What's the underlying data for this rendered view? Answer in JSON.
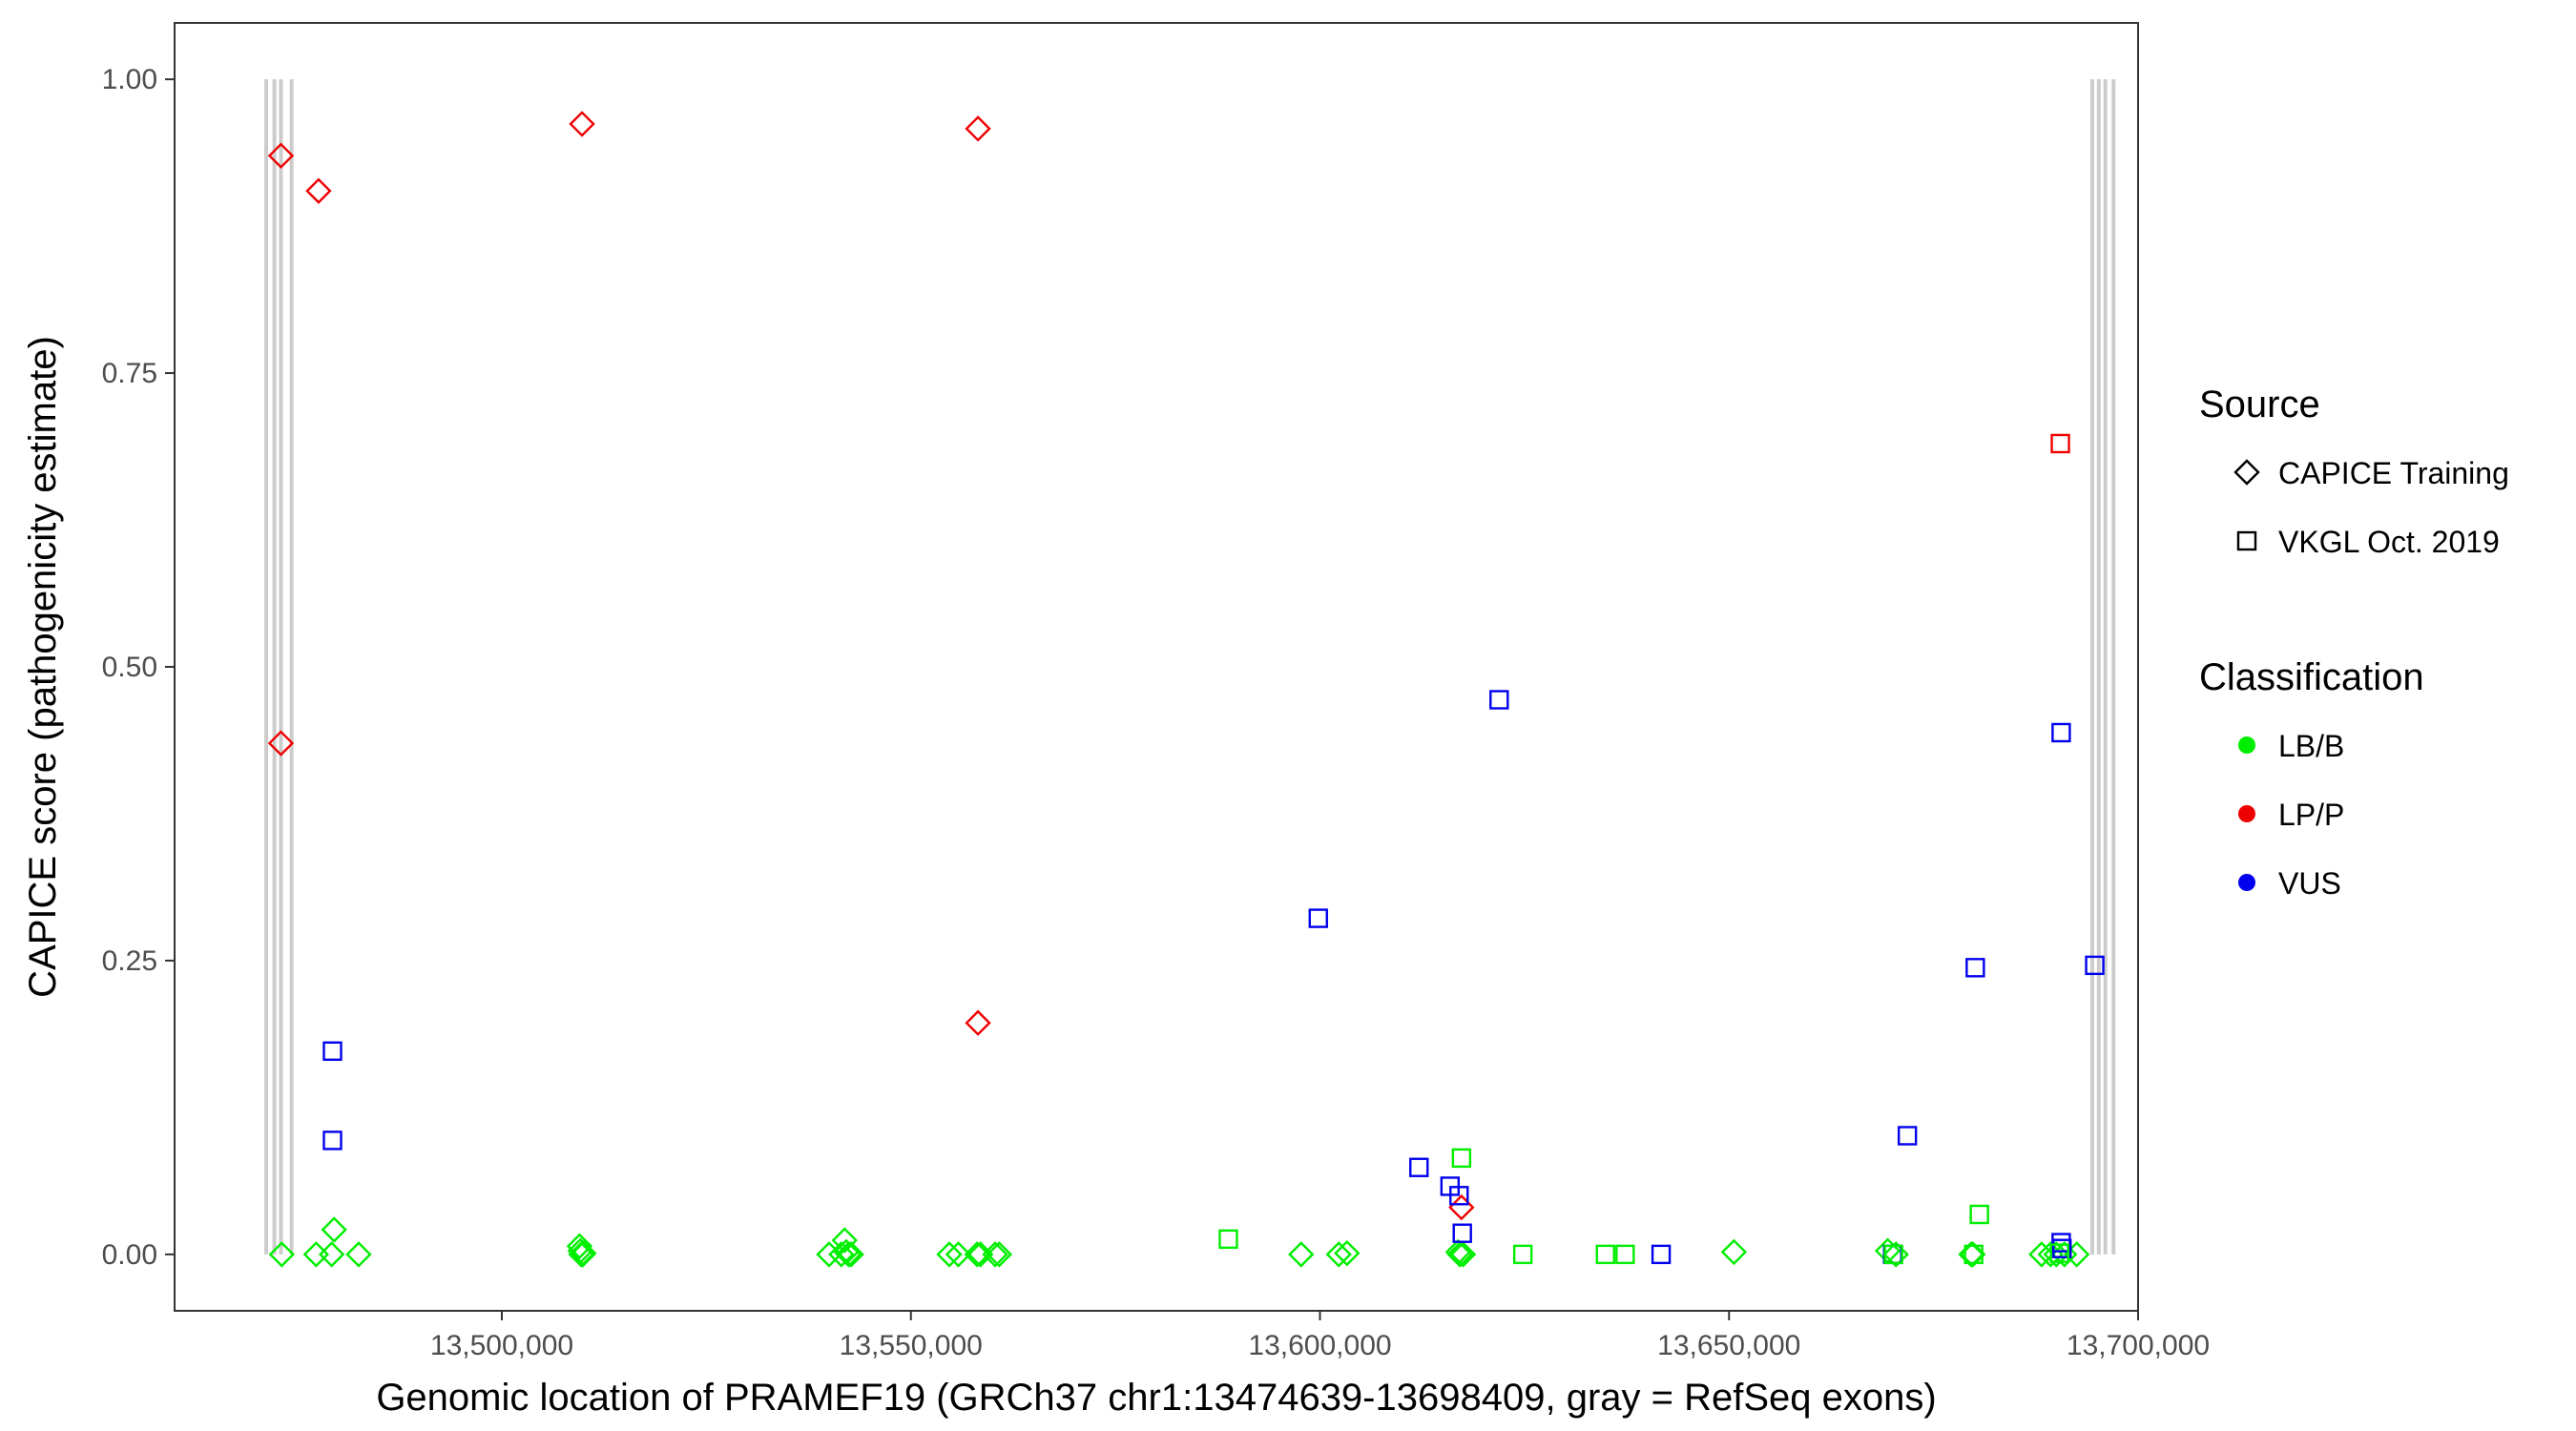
{
  "chart_data": {
    "type": "scatter",
    "title": "",
    "xlabel": "Genomic location of PRAMEF19 (GRCh37 chr1:13474639-13698409, gray = RefSeq exons)",
    "ylabel": "CAPICE score (pathogenicity estimate)",
    "xlim": [
      13460000,
      13700000
    ],
    "ylim": [
      -0.048,
      1.048
    ],
    "x_ticks": [
      13500000,
      13550000,
      13600000,
      13650000,
      13700000
    ],
    "x_tick_labels": [
      "13,500,000",
      "13,550,000",
      "13,600,000",
      "13,650,000",
      "13,700,000"
    ],
    "y_ticks": [
      0,
      0.25,
      0.5,
      0.75,
      1.0
    ],
    "y_tick_labels": [
      "0.00",
      "0.25",
      "0.50",
      "0.75",
      "1.00"
    ],
    "grid": false,
    "legend_position": "right",
    "colors": {
      "LB/B": "#00ee00",
      "LP/P": "#ee0000",
      "VUS": "#0000ee",
      "exon": "#cccccc"
    },
    "exons": [
      13471200,
      13472200,
      13473000,
      13474300,
      13694400,
      13695200,
      13696000,
      13697000
    ],
    "legends": [
      {
        "title": "Source",
        "items": [
          {
            "label": "CAPICE Training",
            "shape": "diamond"
          },
          {
            "label": "VKGL Oct. 2019",
            "shape": "square"
          }
        ]
      },
      {
        "title": "Classification",
        "items": [
          {
            "label": "LB/B",
            "color_key": "LB/B"
          },
          {
            "label": "LP/P",
            "color_key": "LP/P"
          },
          {
            "label": "VUS",
            "color_key": "VUS"
          }
        ]
      }
    ],
    "series": [
      {
        "source": "CAPICE Training",
        "classification": "LP/P",
        "shape": "diamond",
        "points": [
          [
            13473000,
            0.935
          ],
          [
            13477600,
            0.905
          ],
          [
            13473000,
            0.435
          ],
          [
            13509800,
            0.962
          ],
          [
            13558200,
            0.958
          ],
          [
            13558200,
            0.197
          ],
          [
            13617300,
            0.04
          ]
        ]
      },
      {
        "source": "CAPICE Training",
        "classification": "LB/B",
        "shape": "diamond",
        "points": [
          [
            13473100,
            0.0
          ],
          [
            13477300,
            0.0
          ],
          [
            13479200,
            0.0
          ],
          [
            13479500,
            0.021
          ],
          [
            13482500,
            0.0
          ],
          [
            13509500,
            0.007
          ],
          [
            13509600,
            0.003
          ],
          [
            13509700,
            0.0
          ],
          [
            13509900,
            0.0
          ],
          [
            13510000,
            0.001
          ],
          [
            13540000,
            0.0
          ],
          [
            13541500,
            0.0
          ],
          [
            13541900,
            0.012
          ],
          [
            13542100,
            0.002
          ],
          [
            13542400,
            0.0
          ],
          [
            13542700,
            0.0
          ],
          [
            13554700,
            0.0
          ],
          [
            13555800,
            0.0
          ],
          [
            13558100,
            0.0
          ],
          [
            13558500,
            0.0
          ],
          [
            13560300,
            0.0
          ],
          [
            13560800,
            0.0
          ],
          [
            13597700,
            0.0
          ],
          [
            13602300,
            0.0
          ],
          [
            13603300,
            0.001
          ],
          [
            13616900,
            0.002
          ],
          [
            13617100,
            0.0
          ],
          [
            13617500,
            0.0
          ],
          [
            13650600,
            0.002
          ],
          [
            13669400,
            0.003
          ],
          [
            13670400,
            0.0
          ],
          [
            13679600,
            0.0
          ],
          [
            13679800,
            0.0
          ],
          [
            13688200,
            0.0
          ],
          [
            13689300,
            0.0
          ],
          [
            13690000,
            0.0
          ],
          [
            13691000,
            0.0
          ],
          [
            13692500,
            0.0
          ]
        ]
      },
      {
        "source": "VKGL Oct. 2019",
        "classification": "VUS",
        "shape": "square",
        "points": [
          [
            13479300,
            0.173
          ],
          [
            13479300,
            0.097
          ],
          [
            13599800,
            0.286
          ],
          [
            13612100,
            0.074
          ],
          [
            13615900,
            0.058
          ],
          [
            13617000,
            0.05
          ],
          [
            13617400,
            0.018
          ],
          [
            13621900,
            0.472
          ],
          [
            13641700,
            0.0
          ],
          [
            13670000,
            0.0
          ],
          [
            13671800,
            0.101
          ],
          [
            13680100,
            0.244
          ],
          [
            13690600,
            0.444
          ],
          [
            13690600,
            0.01
          ],
          [
            13690700,
            0.005
          ],
          [
            13694700,
            0.246
          ]
        ]
      },
      {
        "source": "VKGL Oct. 2019",
        "classification": "LP/P",
        "shape": "square",
        "points": [
          [
            13690500,
            0.69
          ]
        ]
      },
      {
        "source": "VKGL Oct. 2019",
        "classification": "LB/B",
        "shape": "square",
        "points": [
          [
            13588800,
            0.013
          ],
          [
            13617300,
            0.082
          ],
          [
            13624800,
            0.0
          ],
          [
            13634900,
            0.0
          ],
          [
            13637300,
            0.0
          ],
          [
            13670100,
            0.0
          ],
          [
            13679900,
            0.0
          ],
          [
            13680600,
            0.034
          ],
          [
            13690400,
            0.001
          ]
        ]
      }
    ]
  }
}
